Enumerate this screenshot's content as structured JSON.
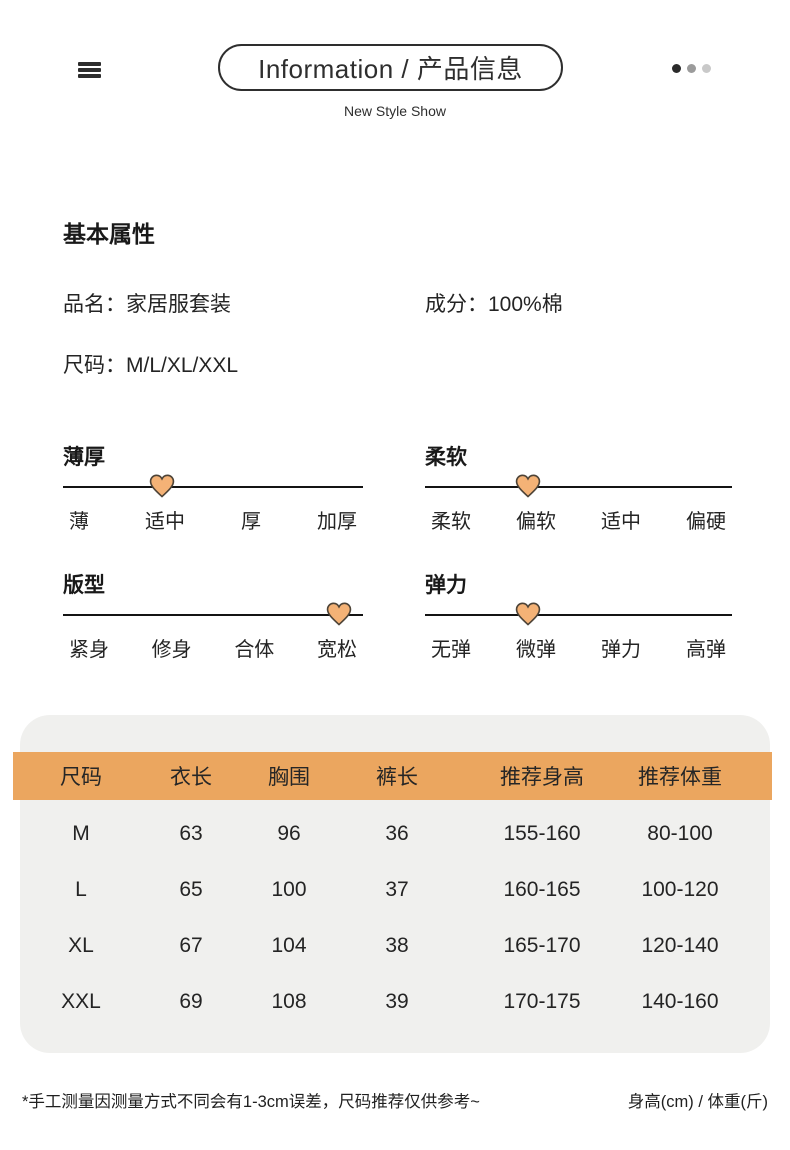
{
  "header": {
    "title": "Information / 产品信息",
    "subtitle": "New Style Show",
    "dot_colors": [
      "#2b2b2b",
      "#9b9b9b",
      "#c9c9c9"
    ]
  },
  "basic": {
    "section_title": "基本属性",
    "fields": [
      {
        "label": "品名：",
        "value": "家居服套装"
      },
      {
        "label": "成分：",
        "value": "100%棉"
      },
      {
        "label": "尺码：",
        "value": "M/L/XL/XXL"
      }
    ]
  },
  "sliders": [
    {
      "title": "薄厚",
      "options": [
        "薄",
        "适中",
        "厚",
        "加厚"
      ],
      "selected": "适中",
      "marker_left_pct": 33
    },
    {
      "title": "柔软",
      "options": [
        "柔软",
        "偏软",
        "适中",
        "偏硬"
      ],
      "selected": "偏软",
      "marker_left_pct": 33.5
    },
    {
      "title": "版型",
      "options": [
        "紧身",
        "修身",
        "合体",
        "宽松"
      ],
      "selected": "宽松",
      "marker_left_pct": 92
    },
    {
      "title": "弹力",
      "options": [
        "无弹",
        "微弹",
        "弹力",
        "高弹"
      ],
      "selected": "微弹",
      "marker_left_pct": 33.5
    }
  ],
  "size_table": {
    "columns": [
      "尺码",
      "衣长",
      "胸围",
      "裤长",
      "推荐身高",
      "推荐体重"
    ],
    "rows": [
      [
        "M",
        "63",
        "96",
        "36",
        "155-160",
        "80-100"
      ],
      [
        "L",
        "65",
        "100",
        "37",
        "160-165",
        "100-120"
      ],
      [
        "XL",
        "67",
        "104",
        "38",
        "165-170",
        "120-140"
      ],
      [
        "XXL",
        "69",
        "108",
        "39",
        "170-175",
        "140-160"
      ]
    ]
  },
  "footer": {
    "note": "*手工测量因测量方式不同会有1-3cm误差，尺码推荐仅供参考~",
    "units": "身高(cm) / 体重(斤)"
  },
  "colors": {
    "accent_orange": "#eba65f",
    "card_gray": "#f0f0ee",
    "heart_fill": "#f4b276",
    "heart_stroke": "#4d4337",
    "text": "#1f1f1f"
  }
}
